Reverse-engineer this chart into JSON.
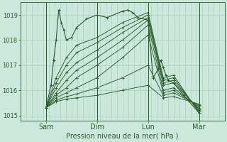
{
  "title": "Pression niveau de la mer( hPa )",
  "bg_color": "#cce8dc",
  "grid_color": "#aaccbb",
  "line_color": "#2a5c2a",
  "ylim": [
    1014.8,
    1019.5
  ],
  "yticks": [
    1015,
    1016,
    1017,
    1018,
    1019
  ],
  "xlim": [
    0.0,
    4.0
  ],
  "xtick_labels": [
    "Sam",
    "Dim",
    "Lun",
    "Mar"
  ],
  "xtick_positions": [
    0.5,
    1.5,
    2.5,
    3.5
  ],
  "day_vlines": [
    0.5,
    1.5,
    2.5,
    3.5
  ],
  "series": [
    {
      "x": [
        0.5,
        0.7,
        0.9,
        1.1,
        1.5,
        2.0,
        2.5,
        2.8,
        3.0,
        3.5
      ],
      "y": [
        1015.3,
        1016.5,
        1017.3,
        1017.8,
        1018.1,
        1018.7,
        1019.1,
        1016.5,
        1016.6,
        1015.1
      ]
    },
    {
      "x": [
        0.5,
        0.7,
        0.9,
        1.1,
        1.5,
        2.0,
        2.5,
        2.8,
        3.0,
        3.5
      ],
      "y": [
        1015.3,
        1016.3,
        1017.0,
        1017.5,
        1017.9,
        1018.5,
        1019.0,
        1016.4,
        1016.5,
        1015.15
      ]
    },
    {
      "x": [
        0.5,
        0.7,
        0.9,
        1.1,
        1.5,
        2.0,
        2.5,
        2.8,
        3.0,
        3.5
      ],
      "y": [
        1015.3,
        1016.1,
        1016.7,
        1017.1,
        1017.6,
        1018.3,
        1018.9,
        1016.3,
        1016.4,
        1015.2
      ]
    },
    {
      "x": [
        0.5,
        0.7,
        0.9,
        1.1,
        1.5,
        2.0,
        2.5,
        2.8,
        3.0,
        3.5
      ],
      "y": [
        1015.3,
        1015.9,
        1016.4,
        1016.8,
        1017.3,
        1018.0,
        1018.8,
        1016.2,
        1016.3,
        1015.25
      ]
    },
    {
      "x": [
        0.5,
        0.7,
        0.9,
        1.1,
        1.5,
        2.0,
        2.5,
        2.8,
        3.0,
        3.5
      ],
      "y": [
        1015.3,
        1015.8,
        1016.1,
        1016.5,
        1017.0,
        1017.7,
        1018.6,
        1016.0,
        1016.1,
        1015.3
      ]
    },
    {
      "x": [
        0.5,
        0.7,
        0.9,
        1.1,
        1.5,
        2.0,
        2.5,
        2.8,
        3.0,
        3.5
      ],
      "y": [
        1015.3,
        1015.7,
        1015.9,
        1016.1,
        1016.5,
        1017.3,
        1018.2,
        1015.9,
        1016.0,
        1015.35
      ]
    },
    {
      "x": [
        0.5,
        0.7,
        0.9,
        1.1,
        1.5,
        2.0,
        2.5,
        2.8,
        3.0,
        3.5
      ],
      "y": [
        1015.3,
        1015.6,
        1015.75,
        1015.85,
        1016.1,
        1016.5,
        1017.0,
        1015.8,
        1015.9,
        1015.4
      ]
    },
    {
      "x": [
        0.5,
        0.7,
        0.9,
        1.1,
        1.5,
        2.0,
        2.5,
        2.8,
        3.0,
        3.5
      ],
      "y": [
        1015.3,
        1015.55,
        1015.65,
        1015.7,
        1015.8,
        1016.0,
        1016.2,
        1015.7,
        1015.75,
        1015.45
      ]
    }
  ],
  "spike_series": {
    "x": [
      0.5,
      0.6,
      0.65,
      0.7,
      0.75,
      0.8,
      0.85,
      0.9,
      1.0,
      1.1,
      1.3,
      1.5,
      1.7,
      2.0,
      2.1,
      2.2,
      2.3,
      2.5,
      2.6,
      2.7,
      2.75,
      2.8,
      2.85,
      2.9,
      3.0,
      3.2,
      3.5
    ],
    "y": [
      1015.3,
      1016.2,
      1017.2,
      1018.0,
      1019.2,
      1018.7,
      1018.4,
      1018.0,
      1018.1,
      1018.5,
      1018.85,
      1019.0,
      1018.9,
      1019.15,
      1019.2,
      1019.1,
      1018.9,
      1018.8,
      1016.5,
      1016.85,
      1017.2,
      1016.9,
      1016.6,
      1016.4,
      1016.3,
      1015.8,
      1015.1
    ]
  },
  "n_vgrid": 36
}
